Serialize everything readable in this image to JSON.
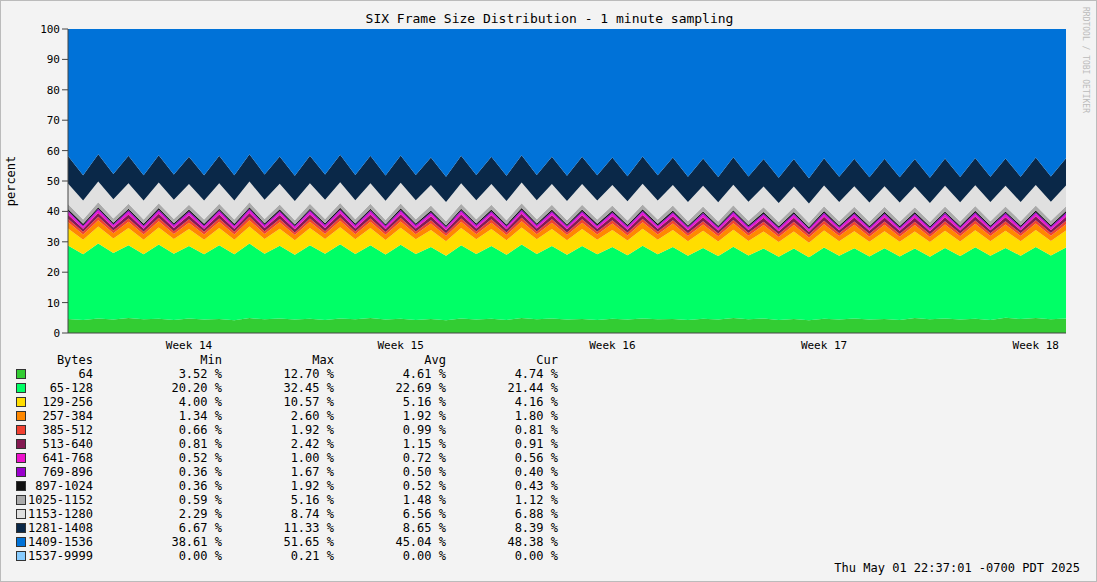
{
  "chart_data": {
    "type": "area",
    "stacked": true,
    "title": "SIX Frame Size Distribution - 1 minute sampling",
    "y_label": "percent",
    "watermark": "RRDTOOL / TOBI OETIKER",
    "footer": "Thu May 01 22:37:01 -0700 PDT 2025",
    "table_headers": [
      "Bytes",
      "Min",
      "Max",
      "Avg",
      "Cur"
    ],
    "ylim": [
      0,
      100
    ],
    "yticks": [
      0,
      10,
      20,
      30,
      40,
      50,
      60,
      70,
      80,
      90,
      100
    ],
    "categories": [
      null,
      null,
      null,
      null,
      null,
      null,
      null,
      null,
      "Week 14",
      null,
      null,
      null,
      null,
      null,
      null,
      null,
      null,
      null,
      null,
      null,
      null,
      null,
      "Week 15",
      null,
      null,
      null,
      null,
      null,
      null,
      null,
      null,
      null,
      null,
      null,
      null,
      null,
      "Week 16",
      null,
      null,
      null,
      null,
      null,
      null,
      null,
      null,
      null,
      null,
      null,
      null,
      null,
      "Week 17",
      null,
      null,
      null,
      null,
      null,
      null,
      null,
      null,
      null,
      null,
      null,
      null,
      null,
      "Week 18",
      null,
      null
    ],
    "series": [
      {
        "name": "64",
        "color": "#33cc33",
        "min": "3.52 %",
        "max": "12.70 %",
        "avg": "4.61 %",
        "cur": "4.74 %",
        "values": [
          4.6,
          4.3,
          4.8,
          4.4,
          4.9,
          4.5,
          4.7,
          4.3,
          4.8,
          4.4,
          4.6,
          4.2,
          4.9,
          4.5,
          4.8,
          4.4,
          4.7,
          4.3,
          4.8,
          4.5,
          4.9,
          4.4,
          4.7,
          4.3,
          4.6,
          4.2,
          4.8,
          4.4,
          4.7,
          4.3,
          4.9,
          4.5,
          4.8,
          4.4,
          4.6,
          4.3,
          4.7,
          4.4,
          4.8,
          4.5,
          4.6,
          4.3,
          4.7,
          4.4,
          4.9,
          4.5,
          4.8,
          4.3,
          4.6,
          4.2,
          4.7,
          4.4,
          4.8,
          4.4,
          4.6,
          4.3,
          4.9,
          4.5,
          4.8,
          4.4,
          4.7,
          4.3,
          5.0,
          4.6,
          4.9,
          4.5,
          4.8
        ]
      },
      {
        "name": "65-128",
        "color": "#00ff66",
        "min": "20.20 %",
        "max": "32.45 %",
        "avg": "22.69 %",
        "cur": "21.44 %",
        "values": [
          24.2,
          21.6,
          24.6,
          21.9,
          24.0,
          21.4,
          24.4,
          21.8,
          23.8,
          21.5,
          24.3,
          21.7,
          24.5,
          21.6,
          23.9,
          21.3,
          24.2,
          21.8,
          24.4,
          21.5,
          24.0,
          21.4,
          24.3,
          21.7,
          23.7,
          21.2,
          24.1,
          21.6,
          23.9,
          21.4,
          24.2,
          21.5,
          23.8,
          21.3,
          24.0,
          21.6,
          23.6,
          21.2,
          23.9,
          21.4,
          23.7,
          21.1,
          23.3,
          20.9,
          23.5,
          21.0,
          23.0,
          20.8,
          23.2,
          20.7,
          23.4,
          21.0,
          23.1,
          20.8,
          23.3,
          20.9,
          22.9,
          20.6,
          23.2,
          20.9,
          23.5,
          21.1,
          23.0,
          20.8,
          23.4,
          21.0,
          23.3
        ]
      },
      {
        "name": "129-256",
        "color": "#ffdd00",
        "min": "4.00 %",
        "max": "10.57 %",
        "avg": "5.16 %",
        "cur": "4.16 %",
        "values": [
          5.6,
          4.8,
          5.6,
          4.8,
          5.6,
          4.8,
          5.6,
          4.8,
          5.6,
          4.8,
          5.6,
          4.8,
          5.6,
          4.8,
          5.6,
          4.8,
          5.6,
          4.8,
          5.6,
          4.8,
          5.6,
          4.8,
          5.6,
          4.8,
          5.6,
          4.8,
          5.6,
          4.8,
          5.6,
          4.8,
          5.6,
          4.8,
          5.6,
          4.8,
          5.6,
          4.8,
          5.6,
          4.8,
          5.6,
          4.8,
          5.6,
          4.8,
          5.6,
          4.8,
          5.6,
          4.8,
          5.6,
          4.8,
          5.6,
          4.8,
          5.6,
          4.8,
          5.6,
          4.8,
          5.6,
          4.8,
          5.6,
          4.8,
          5.6,
          4.8,
          5.6,
          4.8,
          5.6,
          4.8,
          5.6,
          4.8,
          5.6
        ]
      },
      {
        "name": "257-384",
        "color": "#ff8800",
        "min": "1.34 %",
        "max": "2.60 %",
        "avg": "1.92 %",
        "cur": "1.80 %",
        "values": [
          2.1,
          1.7,
          2.1,
          1.7,
          2.1,
          1.7,
          2.1,
          1.7,
          2.1,
          1.7,
          2.1,
          1.7,
          2.1,
          1.7,
          2.1,
          1.7,
          2.1,
          1.7,
          2.1,
          1.7,
          2.1,
          1.7,
          2.1,
          1.7,
          2.1,
          1.7,
          2.1,
          1.7,
          2.1,
          1.7,
          2.1,
          1.7,
          2.1,
          1.7,
          2.1,
          1.7,
          2.1,
          1.7,
          2.1,
          1.7,
          2.1,
          1.7,
          2.1,
          1.7,
          2.1,
          1.7,
          2.1,
          1.7,
          2.1,
          1.7,
          2.1,
          1.7,
          2.1,
          1.7,
          2.1,
          1.7,
          2.1,
          1.7,
          2.1,
          1.7,
          2.1,
          1.7,
          2.1,
          1.7,
          2.1,
          1.7,
          2.1
        ]
      },
      {
        "name": "385-512",
        "color": "#f04030",
        "min": "0.66 %",
        "max": "1.92 %",
        "avg": "0.99 %",
        "cur": "0.81 %",
        "values": [
          1.1,
          0.9,
          1.1,
          0.9,
          1.1,
          0.9,
          1.1,
          0.9,
          1.1,
          0.9,
          1.1,
          0.9,
          1.1,
          0.9,
          1.1,
          0.9,
          1.1,
          0.9,
          1.1,
          0.9,
          1.1,
          0.9,
          1.1,
          0.9,
          1.1,
          0.9,
          1.1,
          0.9,
          1.1,
          0.9,
          1.1,
          0.9,
          1.1,
          0.9,
          1.1,
          0.9,
          1.1,
          0.9,
          1.1,
          0.9,
          1.1,
          0.9,
          1.1,
          0.9,
          1.1,
          0.9,
          1.1,
          0.9,
          1.1,
          0.9,
          1.1,
          0.9,
          1.1,
          0.9,
          1.1,
          0.9,
          1.1,
          0.9,
          1.1,
          0.9,
          1.1,
          0.9,
          1.1,
          0.9,
          1.1,
          0.9,
          1.1
        ]
      },
      {
        "name": "513-640",
        "color": "#841a52",
        "min": "0.81 %",
        "max": "2.42 %",
        "avg": "1.15 %",
        "cur": "0.91 %",
        "values": [
          1.3,
          1.0,
          1.3,
          1.0,
          1.3,
          1.0,
          1.3,
          1.0,
          1.3,
          1.0,
          1.3,
          1.0,
          1.3,
          1.0,
          1.3,
          1.0,
          1.3,
          1.0,
          1.3,
          1.0,
          1.3,
          1.0,
          1.3,
          1.0,
          1.3,
          1.0,
          1.3,
          1.0,
          1.3,
          1.0,
          1.3,
          1.0,
          1.3,
          1.0,
          1.3,
          1.0,
          1.3,
          1.0,
          1.3,
          1.0,
          1.3,
          1.0,
          1.3,
          1.0,
          1.3,
          1.0,
          1.3,
          1.0,
          1.3,
          1.0,
          1.3,
          1.0,
          1.3,
          1.0,
          1.3,
          1.0,
          1.3,
          1.0,
          1.3,
          1.0,
          1.3,
          1.0,
          1.3,
          1.0,
          1.3,
          1.0,
          1.3
        ]
      },
      {
        "name": "641-768",
        "color": "#ee11cc",
        "min": "0.52 %",
        "max": "1.00 %",
        "avg": "0.72 %",
        "cur": "0.56 %",
        "values": [
          0.8,
          0.65,
          0.8,
          0.65,
          0.8,
          0.65,
          0.8,
          0.65,
          0.8,
          0.65,
          0.8,
          0.65,
          0.8,
          0.65,
          0.8,
          0.65,
          0.8,
          0.65,
          0.8,
          0.65,
          0.8,
          0.65,
          0.8,
          0.65,
          0.8,
          0.65,
          0.8,
          0.65,
          0.8,
          0.65,
          0.8,
          0.65,
          0.8,
          0.65,
          0.8,
          0.65,
          0.8,
          0.65,
          0.8,
          0.65,
          0.8,
          0.65,
          0.8,
          0.65,
          0.8,
          0.65,
          0.8,
          0.65,
          0.8,
          0.65,
          0.8,
          0.65,
          0.8,
          0.65,
          0.8,
          0.65,
          0.8,
          0.65,
          0.8,
          0.65,
          0.8,
          0.65,
          0.8,
          0.65,
          0.8,
          0.65,
          0.8
        ]
      },
      {
        "name": "769-896",
        "color": "#9900cc",
        "min": "0.36 %",
        "max": "1.67 %",
        "avg": "0.50 %",
        "cur": "0.40 %",
        "values": [
          0.55,
          0.45,
          0.55,
          0.45,
          0.55,
          0.45,
          0.55,
          0.45,
          0.55,
          0.45,
          0.55,
          0.45,
          0.55,
          0.45,
          0.55,
          0.45,
          0.55,
          0.45,
          0.55,
          0.45,
          0.55,
          0.45,
          0.55,
          0.45,
          0.55,
          0.45,
          0.55,
          0.45,
          0.55,
          0.45,
          0.55,
          0.45,
          0.55,
          0.45,
          0.55,
          0.45,
          0.55,
          0.45,
          0.55,
          0.45,
          0.55,
          0.45,
          0.55,
          0.45,
          0.55,
          0.45,
          0.55,
          0.45,
          0.55,
          0.45,
          0.55,
          0.45,
          0.55,
          0.45,
          0.55,
          0.45,
          0.55,
          0.45,
          0.55,
          0.45,
          0.55,
          0.45,
          0.55,
          0.45,
          0.55,
          0.45,
          0.55
        ]
      },
      {
        "name": "897-1024",
        "color": "#111111",
        "min": "0.36 %",
        "max": "1.92 %",
        "avg": "0.52 %",
        "cur": "0.43 %",
        "values": [
          0.55,
          0.5,
          0.55,
          0.5,
          0.55,
          0.5,
          0.55,
          0.5,
          0.55,
          0.5,
          0.55,
          0.5,
          0.55,
          0.5,
          0.55,
          0.5,
          0.55,
          0.5,
          0.55,
          0.5,
          0.55,
          0.5,
          0.55,
          0.5,
          0.55,
          0.5,
          0.55,
          0.5,
          0.55,
          0.5,
          0.55,
          0.5,
          0.55,
          0.5,
          0.55,
          0.5,
          0.55,
          0.5,
          0.55,
          0.5,
          0.55,
          0.5,
          0.55,
          0.5,
          0.55,
          0.5,
          0.55,
          0.5,
          0.55,
          0.5,
          0.55,
          0.5,
          0.55,
          0.5,
          0.55,
          0.5,
          0.55,
          0.5,
          0.55,
          0.5,
          0.55,
          0.5,
          0.55,
          0.5,
          0.55,
          0.5,
          0.55
        ]
      },
      {
        "name": "1025-1152",
        "color": "#aaaaaa",
        "min": "0.59 %",
        "max": "5.16 %",
        "avg": "1.48 %",
        "cur": "1.12 %",
        "values": [
          1.6,
          1.4,
          1.6,
          1.4,
          1.6,
          1.4,
          1.6,
          1.4,
          1.6,
          1.4,
          1.6,
          1.4,
          1.6,
          1.4,
          1.6,
          1.4,
          1.6,
          1.4,
          1.6,
          1.4,
          1.6,
          1.4,
          1.6,
          1.4,
          1.6,
          1.4,
          1.6,
          1.4,
          1.6,
          1.4,
          1.6,
          1.4,
          1.6,
          1.4,
          1.6,
          1.4,
          1.6,
          1.4,
          1.6,
          1.4,
          1.6,
          1.4,
          1.6,
          1.4,
          1.6,
          1.4,
          1.6,
          1.4,
          1.6,
          1.4,
          1.6,
          1.4,
          1.6,
          1.4,
          1.6,
          1.4,
          1.6,
          1.4,
          1.6,
          1.4,
          1.6,
          1.4,
          1.6,
          1.4,
          1.6,
          1.4,
          1.6
        ]
      },
      {
        "name": "1153-1280",
        "color": "#e0e0e0",
        "min": "2.29 %",
        "max": "8.74 %",
        "avg": "6.56 %",
        "cur": "6.88 %",
        "values": [
          6.8,
          6.3,
          6.8,
          6.3,
          6.8,
          6.3,
          6.8,
          6.3,
          6.8,
          6.3,
          6.8,
          6.3,
          6.8,
          6.3,
          6.8,
          6.3,
          6.8,
          6.3,
          6.8,
          6.3,
          6.8,
          6.3,
          6.8,
          6.3,
          6.8,
          6.3,
          6.8,
          6.3,
          6.8,
          6.3,
          6.8,
          6.3,
          6.8,
          6.3,
          6.8,
          6.3,
          6.8,
          6.3,
          6.8,
          6.3,
          6.8,
          6.3,
          6.8,
          6.3,
          6.8,
          6.3,
          6.8,
          6.3,
          6.8,
          6.3,
          6.8,
          6.3,
          6.8,
          6.3,
          6.8,
          6.3,
          6.8,
          6.3,
          6.8,
          6.3,
          6.8,
          6.3,
          6.8,
          6.3,
          6.8,
          6.3,
          6.8
        ]
      },
      {
        "name": "1281-1408",
        "color": "#0a2848",
        "min": "6.67 %",
        "max": "11.33 %",
        "avg": "8.65 %",
        "cur": "8.39 %",
        "values": [
          9.0,
          8.3,
          9.0,
          8.3,
          9.0,
          8.3,
          9.0,
          8.3,
          9.0,
          8.3,
          9.0,
          8.3,
          9.0,
          8.3,
          9.0,
          8.3,
          9.0,
          8.3,
          9.0,
          8.3,
          9.0,
          8.3,
          9.0,
          8.3,
          9.0,
          8.3,
          9.0,
          8.3,
          9.0,
          8.3,
          9.0,
          8.3,
          9.0,
          8.3,
          9.0,
          8.3,
          9.0,
          8.3,
          9.0,
          8.3,
          9.0,
          8.3,
          9.0,
          8.3,
          9.0,
          8.3,
          9.0,
          8.3,
          9.0,
          8.3,
          9.0,
          8.3,
          9.0,
          8.3,
          9.0,
          8.3,
          9.0,
          8.3,
          9.0,
          8.3,
          9.0,
          8.3,
          9.0,
          8.3,
          9.0,
          8.3,
          9.0
        ]
      },
      {
        "name": "1409-1536",
        "color": "#0072d8",
        "min": "38.61 %",
        "max": "51.65 %",
        "avg": "45.04 %",
        "cur": "48.38 %",
        "values": [
          41.8,
          48.1,
          41.2,
          47.7,
          41.7,
          48.1,
          41.5,
          47.9,
          42.0,
          48.1,
          41.7,
          48.1,
          41.2,
          47.9,
          41.9,
          48.3,
          41.7,
          47.9,
          41.4,
          48.0,
          41.7,
          48.2,
          41.6,
          48.0,
          42.3,
          48.6,
          41.7,
          48.0,
          42.0,
          48.3,
          41.5,
          48.0,
          42.0,
          48.3,
          42.0,
          48.1,
          42.3,
          48.4,
          41.9,
          48.1,
          42.3,
          48.6,
          42.6,
          48.7,
          42.2,
          48.5,
          42.8,
          48.9,
          42.8,
          49.1,
          42.5,
          48.6,
          42.7,
          48.8,
          42.7,
          48.8,
          42.8,
          48.9,
          42.6,
          48.7,
          42.4,
          48.6,
          42.6,
          48.6,
          42.3,
          48.5,
          42.5
        ]
      },
      {
        "name": "1537-9999",
        "color": "#88ccff",
        "min": "0.00 %",
        "max": "0.21 %",
        "avg": "0.00 %",
        "cur": "0.00 %",
        "values": [
          0,
          0,
          0,
          0,
          0,
          0,
          0,
          0,
          0,
          0,
          0,
          0,
          0,
          0,
          0,
          0,
          0,
          0,
          0,
          0,
          0,
          0,
          0,
          0,
          0,
          0,
          0,
          0,
          0,
          0,
          0,
          0,
          0,
          0,
          0,
          0,
          0,
          0,
          0,
          0,
          0,
          0,
          0,
          0,
          0,
          0,
          0,
          0,
          0,
          0,
          0,
          0,
          0,
          0,
          0,
          0,
          0,
          0,
          0,
          0,
          0,
          0,
          0,
          0,
          0,
          0,
          0
        ]
      }
    ]
  }
}
